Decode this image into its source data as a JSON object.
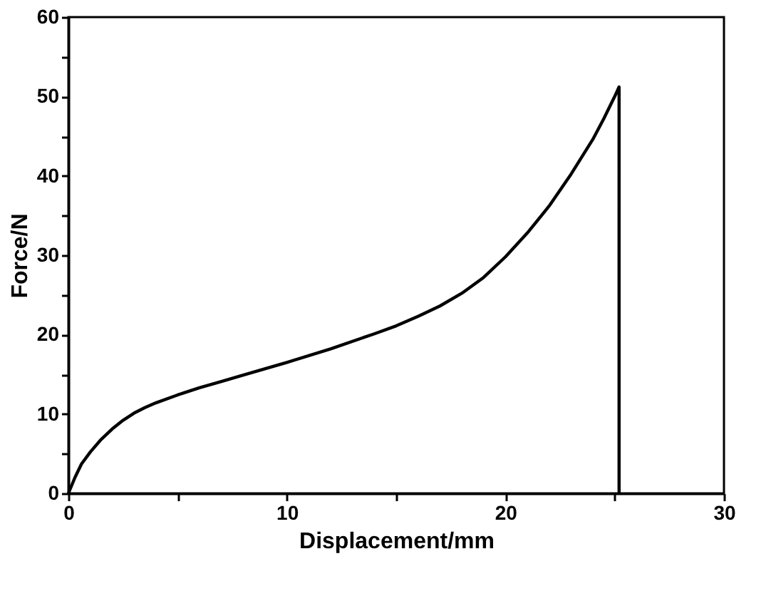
{
  "chart_data": {
    "type": "line",
    "xlabel": "Displacement/mm",
    "ylabel": "Force/N",
    "x": [
      0,
      0.3,
      0.6,
      1,
      1.5,
      2,
      2.5,
      3,
      3.5,
      4,
      5,
      6,
      7,
      8,
      10,
      12,
      14,
      15,
      16,
      17,
      18,
      19,
      20,
      21,
      22,
      23,
      24,
      24.5,
      25,
      25.2,
      25.2
    ],
    "series": [
      {
        "color": "#000000",
        "values": [
          0,
          2,
          3.7,
          5.2,
          6.8,
          8.1,
          9.2,
          10.1,
          10.8,
          11.4,
          12.4,
          13.3,
          14.1,
          14.9,
          16.5,
          18.2,
          20.1,
          21.1,
          22.3,
          23.6,
          25.2,
          27.2,
          29.8,
          32.8,
          36.2,
          40.2,
          44.6,
          47.2,
          50,
          51.2,
          0
        ]
      }
    ],
    "xlim": [
      0,
      30
    ],
    "ylim": [
      0,
      60
    ],
    "xticks": [
      0,
      {
        "value": 5,
        "label": null
      },
      10,
      {
        "value": 15,
        "label": null
      },
      20,
      {
        "value": 25,
        "label": null
      },
      30
    ],
    "yticks": [
      0,
      {
        "value": 5,
        "label": null
      },
      10,
      {
        "value": 15,
        "label": null
      },
      20,
      {
        "value": 25,
        "label": null
      },
      30,
      {
        "value": 35,
        "label": null
      },
      40,
      {
        "value": 45,
        "label": null
      },
      50,
      {
        "value": 55,
        "label": null
      },
      60
    ],
    "grid": false,
    "marker": "none",
    "line_style": "solid"
  }
}
